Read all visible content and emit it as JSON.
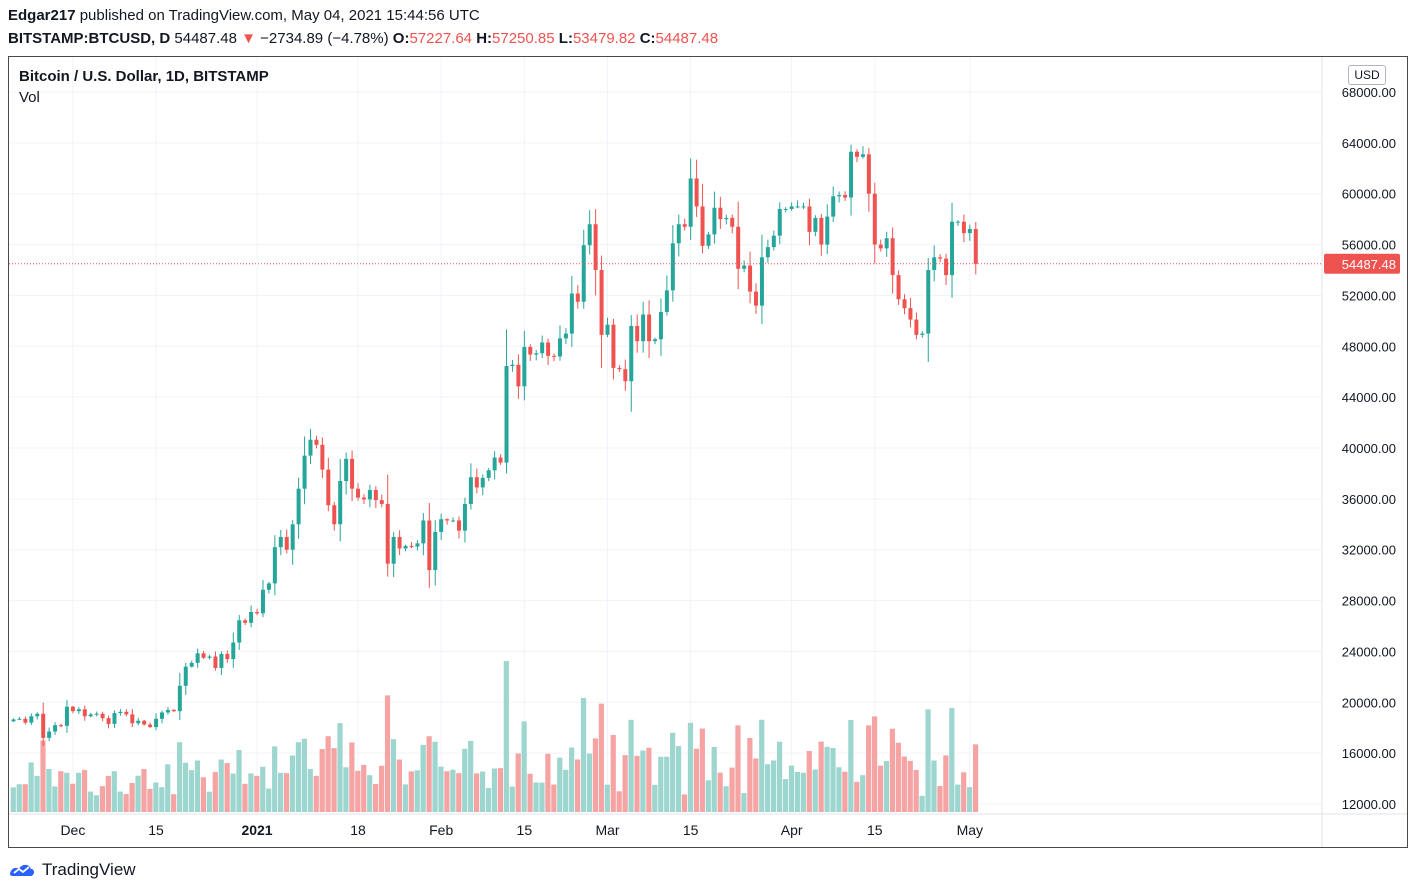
{
  "header": {
    "user": "Edgar217",
    "published": "published on TradingView.com, May 04, 2021 15:44:56 UTC",
    "symbol": "BITSTAMP:BTCUSD, D",
    "last": "54487.48",
    "arrow": "▼",
    "change": "−2734.89 (−4.78%)",
    "o_label": "O:",
    "o_value": "57227.64",
    "h_label": "H:",
    "h_value": "57250.85",
    "l_label": "L:",
    "l_value": "53479.82",
    "c_label": "C:",
    "c_value": "54487.48"
  },
  "legend": {
    "title": "Bitcoin / U.S. Dollar, 1D, BITSTAMP",
    "vol": "Vol"
  },
  "currency_button": "USD",
  "footer": {
    "brand": "TradingView"
  },
  "colors": {
    "up": "#26a69a",
    "down": "#ef5350",
    "vol_up": "#9cd6cf",
    "vol_down": "#f5a3a3",
    "grid": "#f0f3fa",
    "price_line": "#ef5350"
  },
  "chart_data": {
    "type": "candlestick",
    "title": "Bitcoin / U.S. Dollar, 1D, BITSTAMP",
    "last_price_label": "54487.48",
    "y_ticks": [
      "68000.00",
      "64000.00",
      "60000.00",
      "56000.00",
      "52000.00",
      "48000.00",
      "44000.00",
      "40000.00",
      "36000.00",
      "32000.00",
      "28000.00",
      "24000.00",
      "20000.00",
      "16000.00",
      "12000.00"
    ],
    "ylim": [
      11700,
      69800
    ],
    "x_ticks": [
      {
        "label": "Dec",
        "date": "2020-12-01"
      },
      {
        "label": "15",
        "date": "2020-12-15"
      },
      {
        "label": "2021",
        "date": "2021-01-01"
      },
      {
        "label": "18",
        "date": "2021-01-18"
      },
      {
        "label": "Feb",
        "date": "2021-02-01"
      },
      {
        "label": "15",
        "date": "2021-02-15"
      },
      {
        "label": "Mar",
        "date": "2021-03-01"
      },
      {
        "label": "15",
        "date": "2021-03-15"
      },
      {
        "label": "Apr",
        "date": "2021-04-01"
      },
      {
        "label": "15",
        "date": "2021-04-15"
      },
      {
        "label": "May",
        "date": "2021-05-01"
      }
    ],
    "start_date": "2020-11-21",
    "end_date": "2021-05-04",
    "closes": [
      18650,
      18700,
      18400,
      18900,
      19100,
      17200,
      17700,
      18200,
      18150,
      19650,
      19300,
      19450,
      18900,
      19050,
      19100,
      18750,
      18300,
      19150,
      19250,
      19050,
      18350,
      18550,
      18250,
      18050,
      18700,
      19200,
      19400,
      19300,
      21300,
      22800,
      23100,
      23850,
      23500,
      23600,
      22700,
      23800,
      23400,
      24700,
      26450,
      26250,
      27100,
      27000,
      28850,
      29350,
      32200,
      33000,
      32000,
      34000,
      36800,
      39400,
      40650,
      40250,
      38300,
      35500,
      34000,
      37400,
      39150,
      36800,
      36100,
      35950,
      36700,
      35900,
      35600,
      30900,
      33000,
      32100,
      32300,
      32250,
      32500,
      34300,
      30400,
      33400,
      34400,
      34300,
      34300,
      33500,
      35600,
      37700,
      36900,
      37650,
      38250,
      39250,
      38850,
      46450,
      46550,
      44850,
      47950,
      47350,
      47450,
      48300,
      47250,
      47200,
      48620,
      49000,
      52150,
      51500,
      55950,
      57600,
      54000,
      48900,
      49700,
      46300,
      46200,
      45250,
      49600,
      48400,
      50500,
      48400,
      48550,
      50700,
      52400,
      56100,
      57600,
      57400,
      61200,
      59000,
      55900,
      56800,
      58900,
      58000,
      58100,
      57400,
      54100,
      54350,
      52300,
      51200,
      55000,
      55800,
      56700,
      58800,
      58800,
      59000,
      59000,
      59000,
      57000,
      58100,
      56000,
      58200,
      59800,
      59900,
      59700,
      63300,
      62900,
      63100,
      60000,
      56000,
      55700,
      56500,
      53600,
      51700,
      51000,
      50100,
      48900,
      49000,
      54000,
      55000,
      54900,
      53600,
      57800,
      57800,
      56900,
      57227,
      54487
    ],
    "volume_label": "Vol"
  }
}
